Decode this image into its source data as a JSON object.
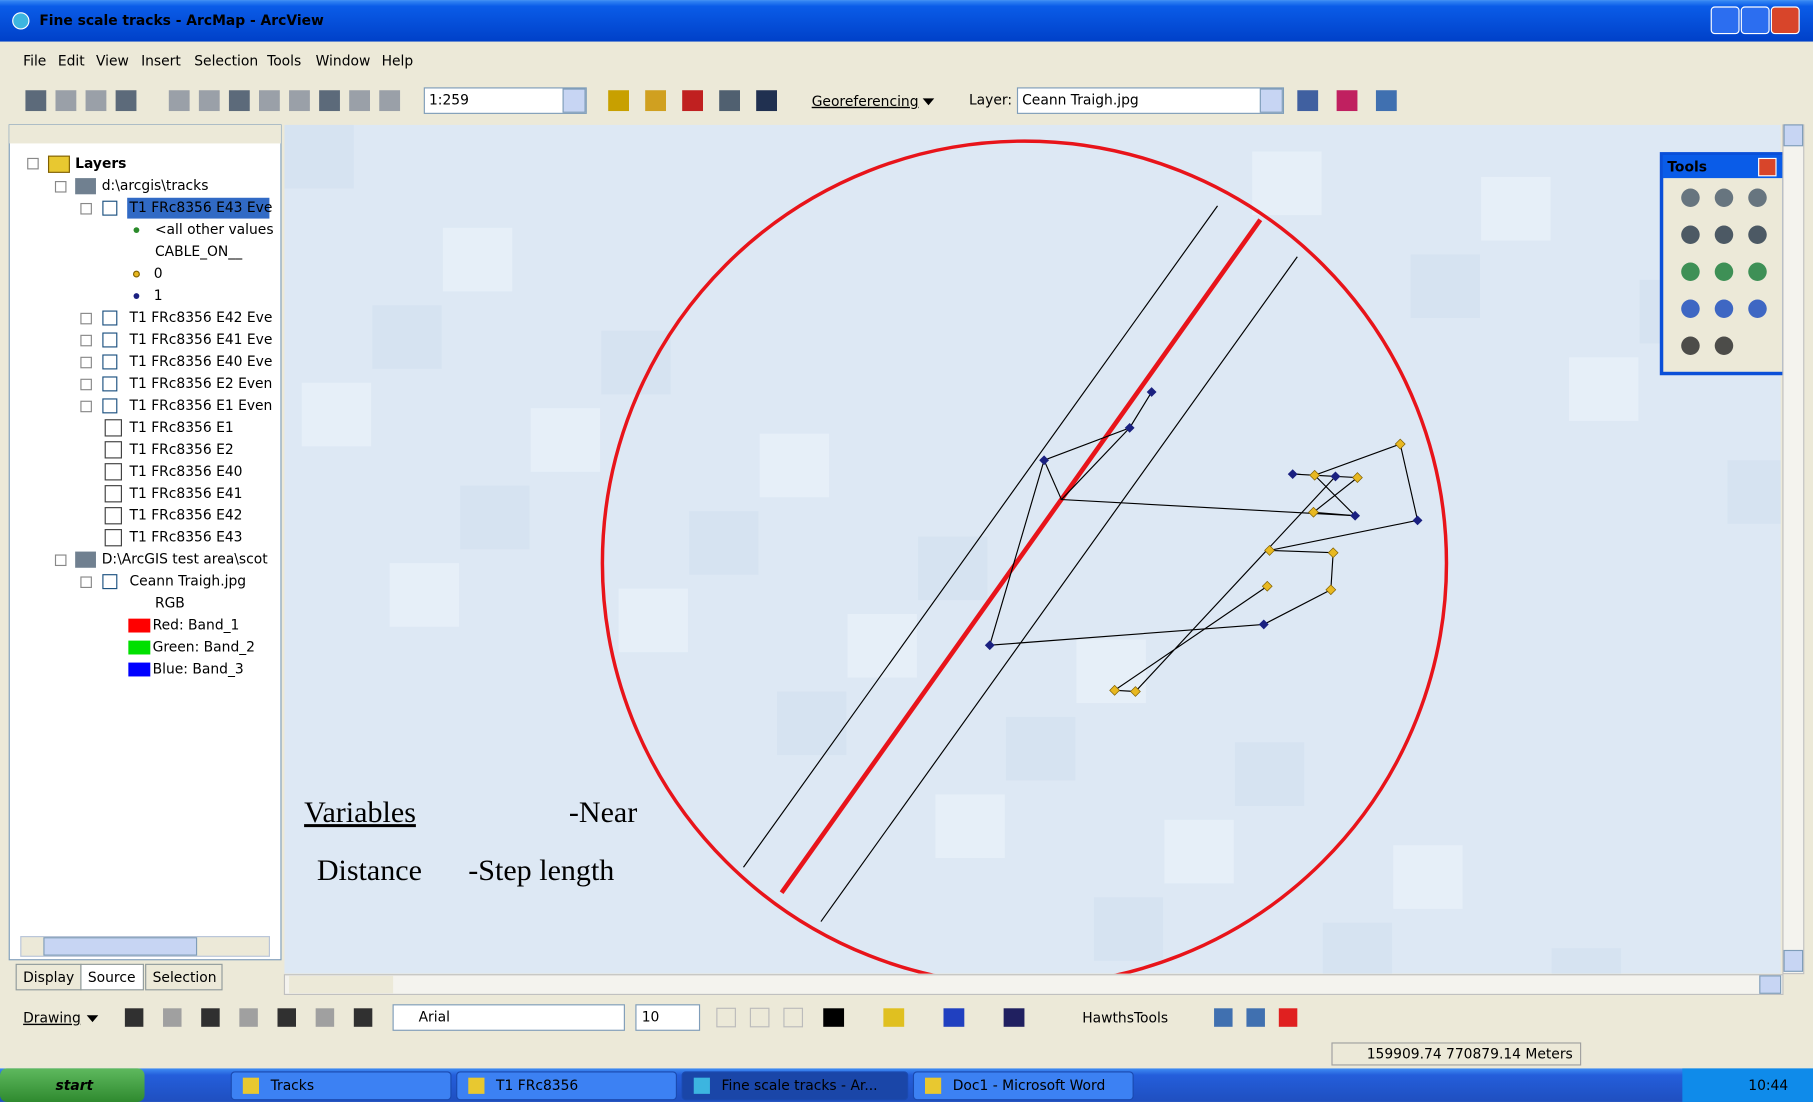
{
  "window": {
    "title": "Fine scale tracks - ArcMap - ArcView"
  },
  "menu": [
    "File",
    "Edit",
    "View",
    "Insert",
    "Selection",
    "Tools",
    "Window",
    "Help"
  ],
  "toolbar": {
    "scale": "1:259",
    "georeferencing": "Georeferencing",
    "layer_label": "Layer:",
    "layer_value": "Ceann Traigh.jpg"
  },
  "toc": {
    "root": "Layers",
    "items": [
      "d:\\arcgis\\tracks",
      "T1 FRc8356 E43 Eve",
      "<all other values",
      "CABLE_ON__",
      "0",
      "1",
      "T1 FRc8356 E42 Eve",
      "T1 FRc8356 E41 Eve",
      "T1 FRc8356 E40 Eve",
      "T1 FRc8356 E2 Even",
      "T1 FRc8356 E1 Even",
      "T1 FRc8356 E1",
      "T1 FRc8356 E2",
      "T1 FRc8356 E40",
      "T1 FRc8356 E41",
      "T1 FRc8356 E42",
      "T1 FRc8356 E43",
      "D:\\ArcGIS test area\\scot",
      "Ceann Traigh.jpg",
      "RGB",
      "Red:   Band_1",
      "Green: Band_2",
      "Blue:  Band_3"
    ]
  },
  "tabs": [
    "Display",
    "Source",
    "Selection"
  ],
  "map": {
    "annotations": [
      "Variables",
      "-Near",
      "Distance",
      "-Step length"
    ]
  },
  "tools_panel": {
    "title": "Tools"
  },
  "drawing_toolbar": {
    "drawing": "Drawing",
    "font": "Arial",
    "size": "10",
    "extension": "HawthsTools"
  },
  "status": {
    "coordinates": "159909.74  770879.14 Meters"
  },
  "taskbar": {
    "start": "start",
    "items": [
      "Tracks",
      "T1 FRc8356",
      "Fine scale tracks - Ar...",
      "Doc1 - Microsoft Word"
    ],
    "clock": "10:44"
  }
}
